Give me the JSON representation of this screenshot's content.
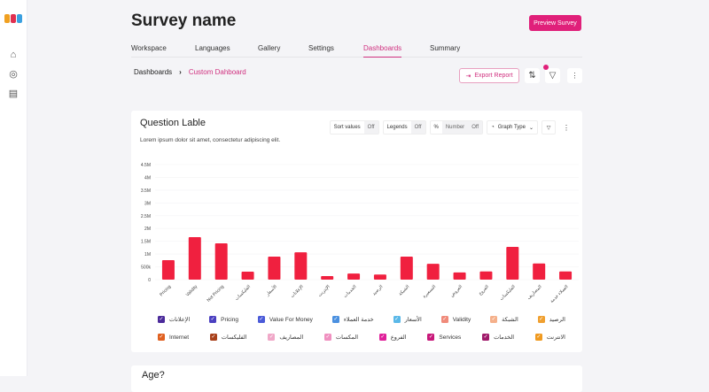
{
  "app": {
    "logo_colors": [
      "#f0a020",
      "#e03050",
      "#3aa0e0"
    ],
    "accent": "#e0207a"
  },
  "sidebar": {
    "items": [
      {
        "icon": "home-icon"
      },
      {
        "icon": "layers-icon"
      },
      {
        "icon": "clipboard-icon"
      }
    ]
  },
  "header": {
    "title": "Survey name",
    "preview_label": "Preview Survey"
  },
  "tabs": [
    {
      "label": "Workspace"
    },
    {
      "label": "Languages"
    },
    {
      "label": "Gallery"
    },
    {
      "label": "Settings"
    },
    {
      "label": "Dashboards",
      "active": true
    },
    {
      "label": "Summary"
    }
  ],
  "breadcrumb": {
    "root": "Dashboards",
    "separator": "›",
    "current": "Custom Dahboard"
  },
  "toolbar": {
    "export_label": "Export Report",
    "sort_icon": "sort-icon",
    "filter_icon": "filter-icon",
    "more_icon": "more-vertical-icon"
  },
  "card": {
    "title": "Question  Lable",
    "description": "Lorem ipsum dolor sit amet, consectetur adipiscing elit.",
    "controls": {
      "sort_label": "Sort values",
      "sort_value": "Off",
      "legends_label": "Legends",
      "legends_value": "Off",
      "percent_label": "%",
      "number_label": "Number",
      "number_value": "Off",
      "graph_type_label": "Graph Type"
    }
  },
  "card2": {
    "title": "Age?"
  },
  "chart_data": {
    "type": "bar",
    "color": "#f0203f",
    "ylim": [
      0,
      4500000
    ],
    "grid": true,
    "yticks": [
      "0",
      "500k",
      "1M",
      "1.5M",
      "2M",
      "2.5M",
      "3M",
      "3.5M",
      "4M",
      "4.5M"
    ],
    "categories": [
      "Pricing",
      "Validity",
      "Not Pricing",
      "الفليكسات",
      "الأسعار",
      "الإعلانات",
      "الإنترنت",
      "الخدمات",
      "الرصيد",
      "الشبكة",
      "التسعيرة",
      "العروض",
      "الفروع",
      "الفليكسات",
      "المصاريف",
      "العملاء خدمة"
    ],
    "values": [
      760000,
      1660000,
      1420000,
      310000,
      900000,
      1070000,
      140000,
      240000,
      200000,
      900000,
      620000,
      280000,
      320000,
      1280000,
      630000,
      320000
    ]
  },
  "legend": [
    {
      "label": "الإعلانات",
      "color": "#4b2a9a"
    },
    {
      "label": "Pricing",
      "color": "#4a3fc0"
    },
    {
      "label": "Value For Money",
      "color": "#4a5ad8"
    },
    {
      "label": "خدمة العملاء",
      "color": "#4a90e0"
    },
    {
      "label": "الأسعار",
      "color": "#5ab8e8"
    },
    {
      "label": "Validity",
      "color": "#f08a7a"
    },
    {
      "label": "الشبكة",
      "color": "#f5b08a"
    },
    {
      "label": "الرصيد",
      "color": "#f0a030"
    },
    {
      "label": "Internet",
      "color": "#e06020"
    },
    {
      "label": "الفليكسات",
      "color": "#a8401a"
    },
    {
      "label": "المصاريف",
      "color": "#f0a8c8"
    },
    {
      "label": "المكسات",
      "color": "#f090c0"
    },
    {
      "label": "الفروع",
      "color": "#e0209a"
    },
    {
      "label": "Services",
      "color": "#c8187a"
    },
    {
      "label": "الخدمات",
      "color": "#a01a6a"
    },
    {
      "label": "الانترنت",
      "color": "#f09a20"
    }
  ]
}
